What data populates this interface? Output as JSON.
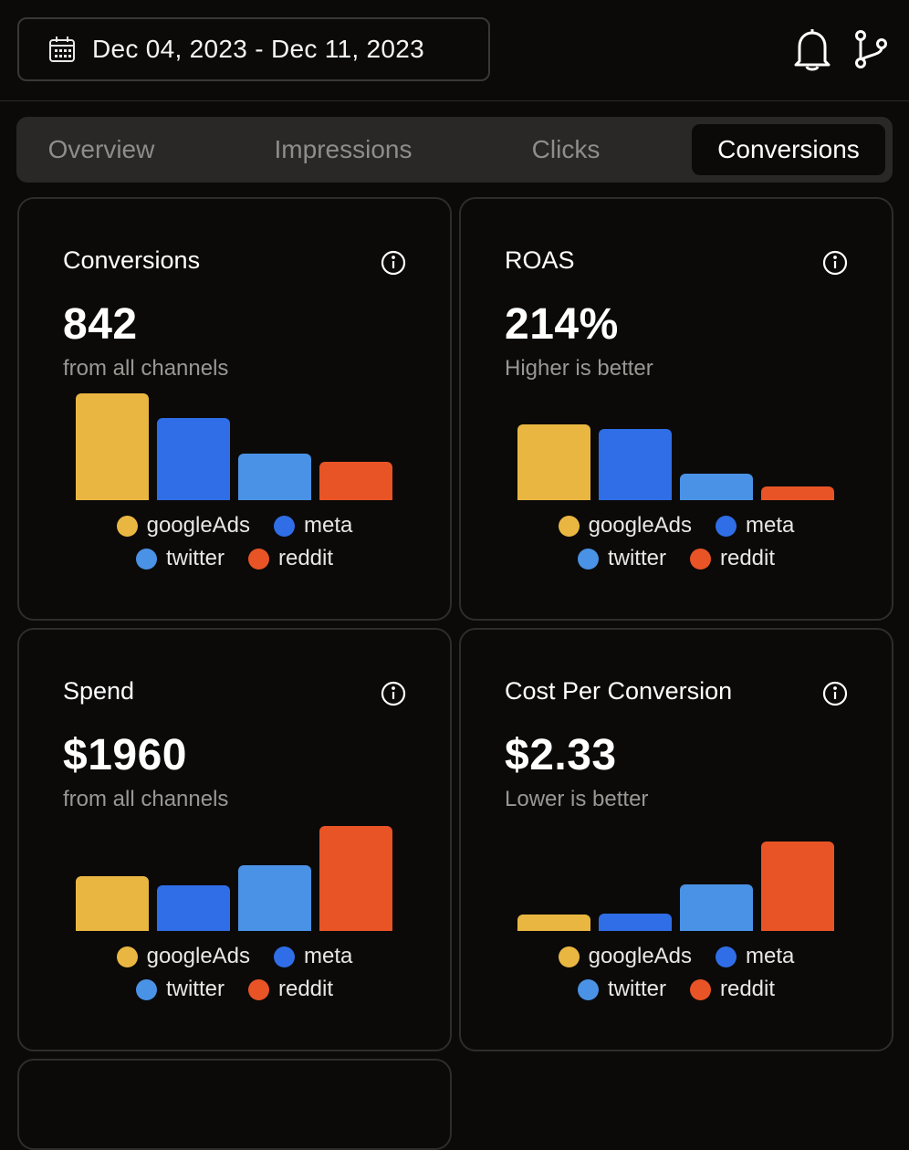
{
  "header": {
    "date_range": "Dec 04, 2023 - Dec 11, 2023",
    "calendar_icon": "calendar-icon",
    "bell_icon": "bell-icon",
    "branch_icon": "git-branch-icon"
  },
  "tabs": [
    {
      "label": "Overview",
      "active": false
    },
    {
      "label": "Impressions",
      "active": false
    },
    {
      "label": "Clicks",
      "active": false
    },
    {
      "label": "Conversions",
      "active": true
    }
  ],
  "colors": {
    "googleAds": "#e9b741",
    "meta": "#2f6ee6",
    "twitter": "#4a92e5",
    "reddit": "#e85426"
  },
  "cards": [
    {
      "title": "Conversions",
      "value": "842",
      "subtitle": "from all channels"
    },
    {
      "title": "ROAS",
      "value": "214%",
      "subtitle": "Higher is better"
    },
    {
      "title": "Spend",
      "value": "$1960",
      "subtitle": "from all channels"
    },
    {
      "title": "Cost Per Conversion",
      "value": "$2.33",
      "subtitle": "Lower is better"
    }
  ],
  "chart_data": [
    {
      "type": "bar",
      "categories": [
        "googleAds",
        "meta",
        "twitter",
        "reddit"
      ],
      "values": [
        115,
        89,
        50,
        41
      ]
    },
    {
      "type": "bar",
      "categories": [
        "googleAds",
        "meta",
        "twitter",
        "reddit"
      ],
      "values": [
        82,
        77,
        29,
        15
      ]
    },
    {
      "type": "bar",
      "categories": [
        "googleAds",
        "meta",
        "twitter",
        "reddit"
      ],
      "values": [
        59,
        49,
        71,
        113
      ]
    },
    {
      "type": "bar",
      "categories": [
        "googleAds",
        "meta",
        "twitter",
        "reddit"
      ],
      "values": [
        18,
        19,
        50,
        96
      ]
    }
  ],
  "legend": {
    "googleAds": "googleAds",
    "meta": "meta",
    "twitter": "twitter",
    "reddit": "reddit"
  }
}
